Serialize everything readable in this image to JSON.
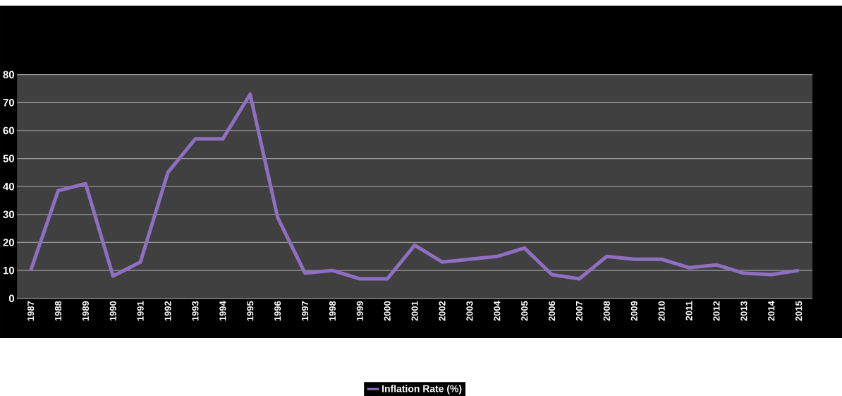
{
  "chart_data": {
    "type": "line",
    "categories": [
      "1987",
      "1988",
      "1989",
      "1990",
      "1991",
      "1992",
      "1993",
      "1994",
      "1995",
      "1996",
      "1997",
      "1998",
      "1999",
      "2000",
      "2001",
      "2002",
      "2003",
      "2004",
      "2005",
      "2006",
      "2007",
      "2008",
      "2009",
      "2010",
      "2011",
      "2012",
      "2013",
      "2014",
      "2015"
    ],
    "series": [
      {
        "name": "Inflation Rate (%)",
        "color": "#8e6fc1",
        "values": [
          10,
          38.5,
          41,
          8,
          13,
          45,
          57,
          57,
          73,
          29,
          9,
          10,
          7,
          7,
          19,
          13,
          14,
          15,
          18,
          8.5,
          7,
          15,
          14,
          14,
          11,
          12,
          9,
          8.5,
          10
        ]
      }
    ],
    "ylim": [
      0,
      80
    ],
    "yticks": [
      0,
      10,
      20,
      30,
      40,
      50,
      60,
      70,
      80
    ],
    "grid": "y",
    "legend": "bottom",
    "marker": "none",
    "line_style": "solid"
  }
}
